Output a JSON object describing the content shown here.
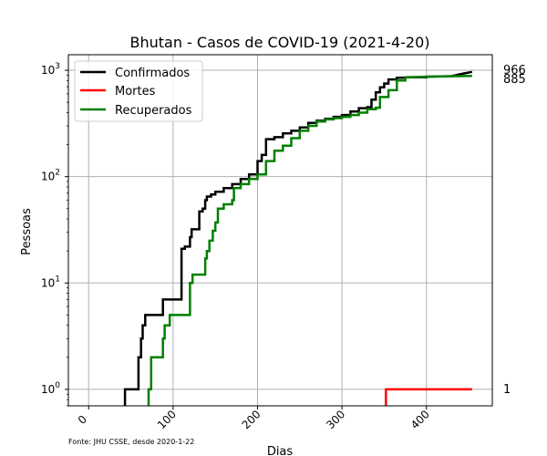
{
  "chart_data": {
    "type": "line",
    "title": "Bhutan - Casos de COVID-19 (2021-4-20)",
    "xlabel": "Dias",
    "ylabel": "Pessoas",
    "yscale": "log",
    "xlim": [
      -24,
      478
    ],
    "ylim": [
      0.7,
      1400
    ],
    "xticks": [
      0,
      100,
      200,
      300,
      400
    ],
    "xtick_labels": [
      "0",
      "100",
      "200",
      "300",
      "400"
    ],
    "yticks": [
      1,
      10,
      100,
      1000
    ],
    "ytick_bases": [
      "10",
      "10",
      "10",
      "10"
    ],
    "ytick_exponents": [
      "0",
      "1",
      "2",
      "3"
    ],
    "grid": true,
    "legend_position": "upper-left",
    "source_note": "Fonte: JHU CSSE, desde 2020-1-22",
    "end_labels": [
      "966",
      "885",
      "1"
    ],
    "series": [
      {
        "name": "Confirmados",
        "color": "#000000",
        "x": [
          43,
          43,
          59,
          59,
          62,
          62,
          64,
          64,
          67,
          67,
          88,
          88,
          110,
          110,
          114,
          114,
          120,
          120,
          122,
          122,
          131,
          131,
          135,
          135,
          138,
          138,
          140,
          140,
          145,
          145,
          150,
          150,
          160,
          160,
          170,
          170,
          180,
          180,
          190,
          190,
          200,
          200,
          205,
          205,
          210,
          210,
          220,
          220,
          230,
          230,
          240,
          240,
          250,
          250,
          260,
          260,
          270,
          270,
          280,
          280,
          290,
          290,
          300,
          300,
          310,
          310,
          320,
          320,
          330,
          330,
          335,
          335,
          340,
          340,
          345,
          345,
          350,
          350,
          355,
          355,
          365,
          365,
          375,
          375,
          400,
          400,
          430,
          440,
          454
        ],
        "y": [
          0.6,
          1,
          1,
          2,
          2,
          3,
          3,
          4,
          4,
          5,
          5,
          7,
          7,
          21,
          21,
          22,
          22,
          27,
          27,
          32,
          32,
          47,
          47,
          50,
          50,
          60,
          60,
          65,
          65,
          68,
          68,
          72,
          72,
          78,
          78,
          85,
          85,
          95,
          95,
          105,
          105,
          140,
          140,
          160,
          160,
          225,
          225,
          235,
          235,
          255,
          255,
          270,
          270,
          290,
          290,
          320,
          320,
          335,
          335,
          350,
          350,
          365,
          365,
          380,
          380,
          410,
          410,
          440,
          440,
          450,
          450,
          530,
          530,
          620,
          620,
          690,
          690,
          750,
          750,
          820,
          820,
          850,
          850,
          860,
          860,
          870,
          880,
          920,
          966
        ]
      },
      {
        "name": "Mortes",
        "color": "#ff0000",
        "x": [
          352,
          352,
          454
        ],
        "y": [
          0.6,
          1,
          1
        ]
      },
      {
        "name": "Recuperados",
        "color": "#008000",
        "x": [
          71,
          71,
          74,
          74,
          88,
          88,
          90,
          90,
          96,
          96,
          120,
          120,
          123,
          123,
          138,
          138,
          140,
          140,
          143,
          143,
          147,
          147,
          150,
          150,
          153,
          153,
          160,
          160,
          170,
          170,
          172,
          172,
          180,
          180,
          190,
          190,
          200,
          200,
          210,
          210,
          220,
          220,
          230,
          230,
          240,
          240,
          250,
          250,
          260,
          260,
          270,
          270,
          280,
          280,
          290,
          290,
          300,
          300,
          310,
          310,
          320,
          320,
          330,
          330,
          340,
          340,
          345,
          345,
          355,
          355,
          365,
          365,
          375,
          375,
          400,
          454
        ],
        "y": [
          0.6,
          1,
          1,
          2,
          2,
          3,
          3,
          4,
          4,
          5,
          5,
          10,
          10,
          12,
          12,
          17,
          17,
          20,
          20,
          25,
          25,
          31,
          31,
          37,
          37,
          50,
          50,
          55,
          55,
          60,
          60,
          78,
          78,
          85,
          85,
          95,
          95,
          105,
          105,
          140,
          140,
          175,
          175,
          195,
          195,
          230,
          230,
          270,
          270,
          300,
          300,
          330,
          330,
          345,
          345,
          355,
          355,
          365,
          365,
          380,
          380,
          400,
          400,
          430,
          430,
          445,
          445,
          560,
          560,
          650,
          650,
          800,
          800,
          860,
          870,
          885
        ]
      }
    ]
  }
}
